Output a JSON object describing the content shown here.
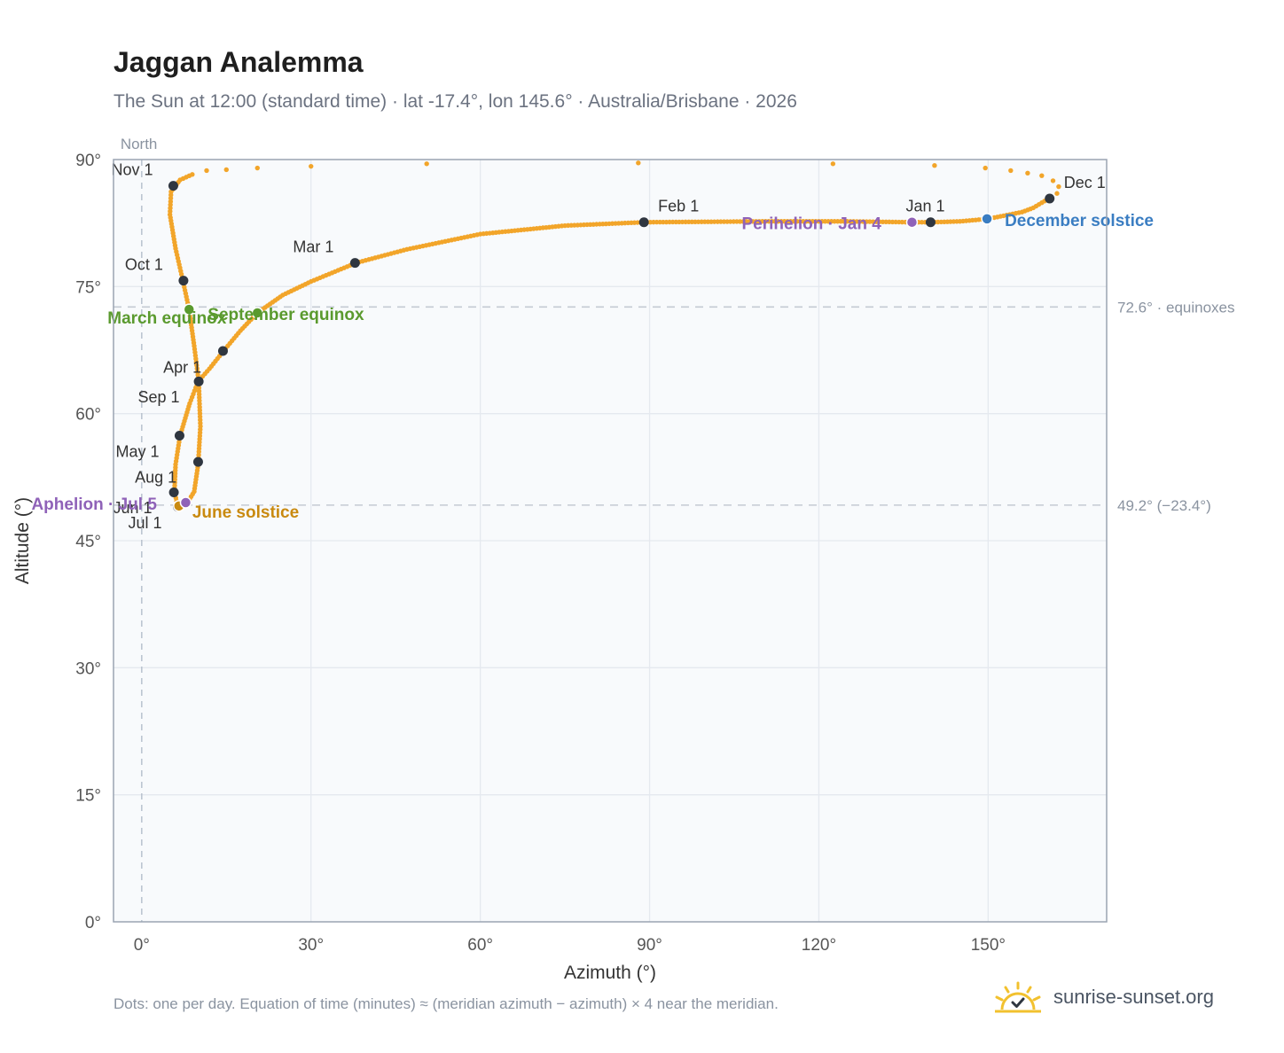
{
  "title": "Jaggan Analemma",
  "subtitle": "The Sun at 12:00 (standard time) · lat -17.4°, lon 145.6° · Australia/Brisbane · 2026",
  "footnote": "Dots: one per day. Equation of time (minutes) ≈ (meridian azimuth − azimuth) × 4 near the meridian.",
  "brand": {
    "name": "sunrise-sunset.org",
    "icon": "sun-check-icon"
  },
  "colors": {
    "analemma": "#f2a52a",
    "month_marker": "#2f3640",
    "equinox": "#5a9a2e",
    "june_solstice": "#c98a10",
    "december_solstice": "#3a7dc2",
    "aphelion_perihelion": "#8f62b8",
    "reference_line": "#c4cad3",
    "plot_background": "#f8fafc",
    "grid": "#e5e9ef"
  },
  "chart_data": {
    "type": "scatter",
    "xlabel": "Azimuth (°)",
    "ylabel": "Altitude (°)",
    "xlim": [
      -5,
      171
    ],
    "ylim": [
      0,
      90
    ],
    "xticks": [
      0,
      30,
      60,
      90,
      120,
      150
    ],
    "yticks": [
      0,
      15,
      30,
      45,
      60,
      75,
      90
    ],
    "x_tick_labels": [
      "0°",
      "30°",
      "60°",
      "90°",
      "120°",
      "150°"
    ],
    "y_tick_labels": [
      "0°",
      "15°",
      "30°",
      "45°",
      "60°",
      "75°",
      "90°"
    ],
    "grid": true,
    "north_line": {
      "x": 0,
      "label": "North"
    },
    "reference_lines": [
      {
        "y": 72.6,
        "label": "72.6° · equinoxes"
      },
      {
        "y": 49.2,
        "label": "49.2° (−23.4°)"
      }
    ],
    "analemma_path": [
      [
        161,
        85.5
      ],
      [
        158,
        84.3
      ],
      [
        156,
        83.8
      ],
      [
        150,
        83.0
      ],
      [
        145,
        82.7
      ],
      [
        140,
        82.6
      ],
      [
        136.5,
        82.6
      ],
      [
        125,
        82.7
      ],
      [
        110,
        82.7
      ],
      [
        89,
        82.6
      ],
      [
        75,
        82.2
      ],
      [
        60,
        81.2
      ],
      [
        47,
        79.4
      ],
      [
        38,
        77.8
      ],
      [
        30,
        75.6
      ],
      [
        25,
        74.0
      ],
      [
        20.5,
        71.9
      ],
      [
        17.5,
        69.8
      ],
      [
        14.5,
        67.4
      ],
      [
        12,
        65.3
      ],
      [
        10,
        63.8
      ],
      [
        8.5,
        61.2
      ],
      [
        6.8,
        57.4
      ],
      [
        6.0,
        54.0
      ],
      [
        5.8,
        50.8
      ],
      [
        6.3,
        49.3
      ],
      [
        7.3,
        49.2
      ],
      [
        8.2,
        49.6
      ],
      [
        9.3,
        50.8
      ],
      [
        10.0,
        54.0
      ],
      [
        10.4,
        58.5
      ],
      [
        10.1,
        63.8
      ],
      [
        9.3,
        68.0
      ],
      [
        8.4,
        72.3
      ],
      [
        7.3,
        75.7
      ],
      [
        6.0,
        79.5
      ],
      [
        5.0,
        83.5
      ],
      [
        5.2,
        86.2
      ],
      [
        6.8,
        87.6
      ],
      [
        9.5,
        88.4
      ]
    ],
    "sparse_top_dots": [
      [
        11.5,
        88.7
      ],
      [
        15,
        88.8
      ],
      [
        20.5,
        89.0
      ],
      [
        30,
        89.2
      ],
      [
        50.5,
        89.5
      ],
      [
        88,
        89.6
      ],
      [
        122.5,
        89.5
      ],
      [
        140.5,
        89.3
      ],
      [
        149.5,
        89.0
      ],
      [
        154,
        88.7
      ],
      [
        157,
        88.4
      ],
      [
        159.5,
        88.1
      ],
      [
        161.5,
        87.5
      ],
      [
        162.5,
        86.8
      ],
      [
        162.2,
        86.0
      ]
    ],
    "month_markers": [
      {
        "label": "Jan 1",
        "x": 139.8,
        "y": 82.6
      },
      {
        "label": "Feb 1",
        "x": 89.0,
        "y": 82.6
      },
      {
        "label": "Mar 1",
        "x": 37.8,
        "y": 77.8
      },
      {
        "label": "Apr 1",
        "x": 10.1,
        "y": 63.8
      },
      {
        "label": "May 1",
        "x": 6.7,
        "y": 57.4
      },
      {
        "label": "Jun 1",
        "x": 10.0,
        "y": 54.3
      },
      {
        "label": "Jul 1",
        "x": 6.4,
        "y": 49.0
      },
      {
        "label": "Aug 1",
        "x": 5.7,
        "y": 50.7
      },
      {
        "label": "Sep 1",
        "x": 14.4,
        "y": 67.4
      },
      {
        "label": "Oct 1",
        "x": 7.4,
        "y": 75.7
      },
      {
        "label": "Nov 1",
        "x": 5.6,
        "y": 86.9
      },
      {
        "label": "Dec 1",
        "x": 160.9,
        "y": 85.4
      }
    ],
    "events": [
      {
        "label": "March equinox",
        "x": 8.4,
        "y": 72.3,
        "kind": "equinox"
      },
      {
        "label": "September equinox",
        "x": 20.5,
        "y": 71.9,
        "kind": "equinox"
      },
      {
        "label": "June solstice",
        "x": 6.6,
        "y": 49.1,
        "kind": "june_solstice"
      },
      {
        "label": "December solstice",
        "x": 149.8,
        "y": 83.0,
        "kind": "december_solstice"
      },
      {
        "label": "Aphelion · Jul 5",
        "x": 7.8,
        "y": 49.5,
        "kind": "aphelion_perihelion"
      },
      {
        "label": "Perihelion · Jan 4",
        "x": 136.5,
        "y": 82.6,
        "kind": "aphelion_perihelion"
      }
    ]
  }
}
